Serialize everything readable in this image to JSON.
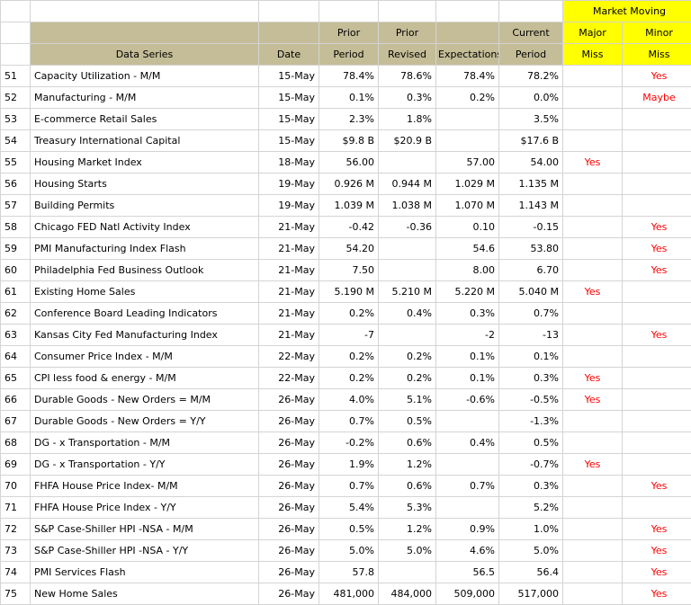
{
  "header": {
    "market_moving": "Market Moving",
    "row1": [
      "",
      "",
      "",
      "Prior",
      "Prior",
      "",
      "Current",
      "Major",
      "Minor"
    ],
    "row2": [
      "",
      "Data Series",
      "Date",
      "Period",
      "Revised",
      "Expectations",
      "Period",
      "Miss",
      "Miss"
    ]
  },
  "rows": [
    {
      "n": "51",
      "series": "Capacity Utilization - M/M",
      "date": "15-May",
      "prior": "78.4%",
      "revised": "78.6%",
      "exp": "78.4%",
      "current": "78.2%",
      "major": "",
      "minor": "Yes"
    },
    {
      "n": "52",
      "series": "Manufacturing - M/M",
      "date": "15-May",
      "prior": "0.1%",
      "revised": "0.3%",
      "exp": "0.2%",
      "current": "0.0%",
      "major": "",
      "minor": "Maybe"
    },
    {
      "n": "53",
      "series": "E-commerce Retail Sales",
      "date": "15-May",
      "prior": "2.3%",
      "revised": "1.8%",
      "exp": "",
      "current": "3.5%",
      "major": "",
      "minor": ""
    },
    {
      "n": "54",
      "series": "Treasury International Capital",
      "date": "15-May",
      "prior": "$9.8 B",
      "revised": "$20.9 B",
      "exp": "",
      "current": "$17.6 B",
      "major": "",
      "minor": ""
    },
    {
      "n": "55",
      "series": "Housing Market Index",
      "date": "18-May",
      "prior": "56.00",
      "revised": "",
      "exp": "57.00",
      "current": "54.00",
      "major": "Yes",
      "minor": ""
    },
    {
      "n": "56",
      "series": "Housing Starts",
      "date": "19-May",
      "prior": "0.926 M",
      "revised": "0.944 M",
      "exp": "1.029 M",
      "current": "1.135 M",
      "major": "",
      "minor": ""
    },
    {
      "n": "57",
      "series": "Building Permits",
      "date": "19-May",
      "prior": "1.039 M",
      "revised": "1.038 M",
      "exp": "1.070 M",
      "current": "1.143 M",
      "major": "",
      "minor": ""
    },
    {
      "n": "58",
      "series": "Chicago FED Natl Activity Index",
      "date": "21-May",
      "prior": "-0.42",
      "revised": "-0.36",
      "exp": "0.10",
      "current": "-0.15",
      "major": "",
      "minor": "Yes"
    },
    {
      "n": "59",
      "series": "PMI Manufacturing Index Flash",
      "date": "21-May",
      "prior": "54.20",
      "revised": "",
      "exp": "54.6",
      "current": "53.80",
      "major": "",
      "minor": "Yes"
    },
    {
      "n": "60",
      "series": "Philadelphia Fed Business Outlook",
      "date": "21-May",
      "prior": "7.50",
      "revised": "",
      "exp": "8.00",
      "current": "6.70",
      "major": "",
      "minor": "Yes"
    },
    {
      "n": "61",
      "series": "Existing Home Sales",
      "date": "21-May",
      "prior": "5.190 M",
      "revised": "5.210 M",
      "exp": "5.220 M",
      "current": "5.040 M",
      "major": "Yes",
      "minor": ""
    },
    {
      "n": "62",
      "series": "Conference Board Leading Indicators",
      "date": "21-May",
      "prior": "0.2%",
      "revised": "0.4%",
      "exp": "0.3%",
      "current": "0.7%",
      "major": "",
      "minor": ""
    },
    {
      "n": "63",
      "series": "Kansas City Fed Manufacturing Index",
      "date": "21-May",
      "prior": "-7",
      "revised": "",
      "exp": "-2",
      "current": "-13",
      "major": "",
      "minor": "Yes"
    },
    {
      "n": "64",
      "series": "Consumer Price Index - M/M",
      "date": "22-May",
      "prior": "0.2%",
      "revised": "0.2%",
      "exp": "0.1%",
      "current": "0.1%",
      "major": "",
      "minor": ""
    },
    {
      "n": "65",
      "series": "CPI less food & energy - M/M",
      "date": "22-May",
      "prior": "0.2%",
      "revised": "0.2%",
      "exp": "0.1%",
      "current": "0.3%",
      "major": "Yes",
      "minor": ""
    },
    {
      "n": "66",
      "series": "Durable Goods - New Orders = M/M",
      "date": "26-May",
      "prior": "4.0%",
      "revised": "5.1%",
      "exp": "-0.6%",
      "current": "-0.5%",
      "major": "Yes",
      "minor": ""
    },
    {
      "n": "67",
      "series": "Durable Goods - New Orders = Y/Y",
      "date": "26-May",
      "prior": "0.7%",
      "revised": "0.5%",
      "exp": "",
      "current": "-1.3%",
      "major": "",
      "minor": ""
    },
    {
      "n": "68",
      "series": "DG - x Transportation - M/M",
      "date": "26-May",
      "prior": "-0.2%",
      "revised": "0.6%",
      "exp": "0.4%",
      "current": "0.5%",
      "major": "",
      "minor": ""
    },
    {
      "n": "69",
      "series": "DG - x Transportation - Y/Y",
      "date": "26-May",
      "prior": "1.9%",
      "revised": "1.2%",
      "exp": "",
      "current": "-0.7%",
      "major": "Yes",
      "minor": ""
    },
    {
      "n": "70",
      "series": "FHFA House Price Index- M/M",
      "date": "26-May",
      "prior": "0.7%",
      "revised": "0.6%",
      "exp": "0.7%",
      "current": "0.3%",
      "major": "",
      "minor": "Yes"
    },
    {
      "n": "71",
      "series": "FHFA House Price Index - Y/Y",
      "date": "26-May",
      "prior": "5.4%",
      "revised": "5.3%",
      "exp": "",
      "current": "5.2%",
      "major": "",
      "minor": ""
    },
    {
      "n": "72",
      "series": "S&P Case-Shiller HPI -NSA - M/M",
      "date": "26-May",
      "prior": "0.5%",
      "revised": "1.2%",
      "exp": "0.9%",
      "current": "1.0%",
      "major": "",
      "minor": "Yes"
    },
    {
      "n": "73",
      "series": "S&P Case-Shiller HPI -NSA - Y/Y",
      "date": "26-May",
      "prior": "5.0%",
      "revised": "5.0%",
      "exp": "4.6%",
      "current": "5.0%",
      "major": "",
      "minor": "Yes"
    },
    {
      "n": "74",
      "series": "PMI Services Flash",
      "date": "26-May",
      "prior": "57.8",
      "revised": "",
      "exp": "56.5",
      "current": "56.4",
      "major": "",
      "minor": "Yes"
    },
    {
      "n": "75",
      "series": "New Home Sales",
      "date": "26-May",
      "prior": "481,000",
      "revised": "484,000",
      "exp": "509,000",
      "current": "517,000",
      "major": "",
      "minor": "Yes"
    }
  ]
}
